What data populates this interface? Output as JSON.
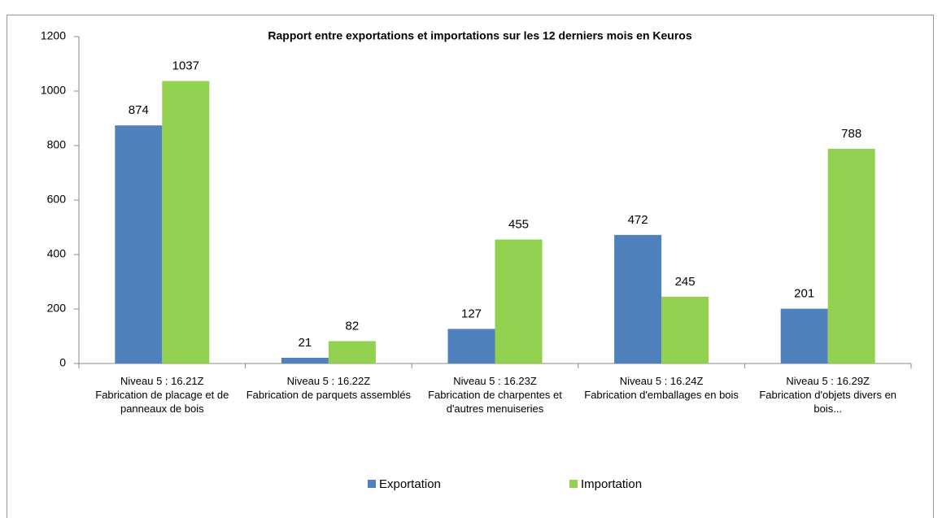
{
  "chart_data": {
    "type": "bar",
    "title": "Rapport entre exportations et importations sur les 12 derniers mois en Keuros",
    "categories": [
      "Niveau 5 : 16.21Z\nFabrication de placage et de panneaux de bois",
      "Niveau 5 : 16.22Z\nFabrication de parquets assemblés",
      "Niveau 5 : 16.23Z\nFabrication de charpentes et d'autres menuiseries",
      "Niveau 5 : 16.24Z\nFabrication d'emballages en bois",
      "Niveau 5 : 16.29Z\nFabrication d'objets divers en bois..."
    ],
    "series": [
      {
        "name": "Exportation",
        "color": "#4f81bd",
        "values": [
          874,
          21,
          127,
          472,
          201
        ]
      },
      {
        "name": "Importation",
        "color": "#92d050",
        "values": [
          1037,
          82,
          455,
          245,
          788
        ]
      }
    ],
    "ylim": [
      0,
      1200
    ],
    "yticks": [
      0,
      200,
      400,
      600,
      800,
      1000,
      1200
    ],
    "legend": "bottom"
  }
}
